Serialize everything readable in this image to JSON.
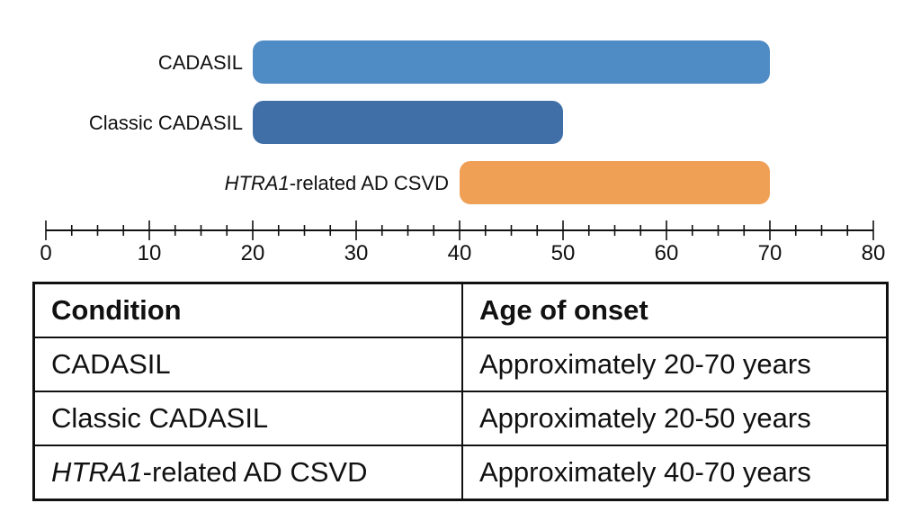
{
  "chart_data": {
    "type": "bar",
    "orientation": "horizontal-range",
    "categories": [
      "CADASIL",
      "Classic CADASIL",
      "HTRA1-related AD CSVD"
    ],
    "ranges": [
      [
        20,
        70
      ],
      [
        20,
        50
      ],
      [
        40,
        70
      ]
    ],
    "colors": [
      "#4f8bc4",
      "#3f6fa6",
      "#f0a055"
    ],
    "xlim": [
      0,
      80
    ],
    "major_ticks": [
      0,
      10,
      20,
      30,
      40,
      50,
      60,
      70,
      80
    ],
    "minor_tick_step": 2.5,
    "grid": false,
    "title": "",
    "xlabel": "",
    "ylabel": ""
  },
  "table": {
    "headers": [
      "Condition",
      "Age of onset"
    ],
    "rows": [
      {
        "condition_gene": "",
        "condition": "CADASIL",
        "onset": "Approximately 20-70 years"
      },
      {
        "condition_gene": "",
        "condition": "Classic CADASIL",
        "onset": "Approximately 20-50 years"
      },
      {
        "condition_gene": "HTRA1",
        "condition": "-related AD CSVD",
        "onset": "Approximately 40-70 years"
      }
    ]
  }
}
